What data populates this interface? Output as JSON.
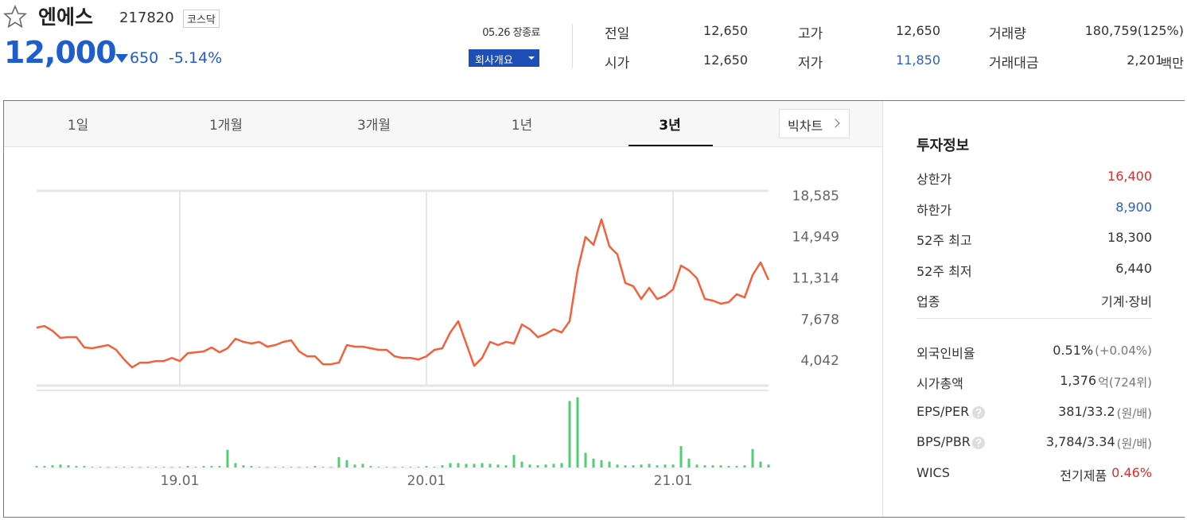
{
  "header": {
    "name": "엔에스",
    "code": "217820",
    "market": "코스닥",
    "price": "12,000",
    "change": "650",
    "change_rate": "-5.14%",
    "status": "05.26 장종료",
    "company_button": "회사개요"
  },
  "stats": [
    {
      "label": "전일",
      "value": "12,650"
    },
    {
      "label": "시가",
      "value": "12,650"
    },
    {
      "label": "고가",
      "value": "12,650"
    },
    {
      "label": "저가",
      "value": "11,850",
      "color": "#2a5fc9"
    },
    {
      "label": "거래량",
      "value": "180,759(125%)"
    },
    {
      "label": "거래대금",
      "value": "2,201",
      "unit": "백만"
    }
  ],
  "tabs": [
    "1일",
    "1개월",
    "3개월",
    "1년",
    "3년"
  ],
  "active_tab": 4,
  "big_chart": "빅차트",
  "chart_data": {
    "type": "line",
    "color": "#f5603c",
    "categories": [
      null,
      null,
      null,
      null,
      null,
      null,
      null,
      null,
      null,
      null,
      null,
      null,
      null,
      null,
      null,
      null,
      null,
      null,
      "19.01",
      null,
      null,
      null,
      null,
      null,
      null,
      null,
      null,
      null,
      null,
      null,
      null,
      null,
      null,
      null,
      null,
      null,
      null,
      null,
      null,
      null,
      null,
      null,
      null,
      null,
      null,
      null,
      null,
      null,
      null,
      "20.01",
      null,
      null,
      null,
      null,
      null,
      null,
      null,
      null,
      null,
      null,
      null,
      null,
      null,
      null,
      null,
      null,
      null,
      null,
      null,
      null,
      null,
      null,
      null,
      null,
      null,
      null,
      null,
      null,
      null,
      null,
      "21.01",
      null,
      null,
      null,
      null,
      null,
      null,
      null,
      null,
      null,
      null,
      null,
      null
    ],
    "values": [
      6920,
      7060,
      6640,
      6010,
      6080,
      6080,
      5170,
      5100,
      5240,
      5380,
      4960,
      4110,
      3410,
      3830,
      3830,
      3970,
      3970,
      4250,
      3970,
      4670,
      4740,
      4820,
      5170,
      4740,
      5100,
      5940,
      5660,
      5520,
      5660,
      5240,
      5380,
      5660,
      5800,
      4820,
      4390,
      4390,
      3690,
      3690,
      3830,
      5380,
      5240,
      5240,
      5100,
      4960,
      4960,
      4390,
      4250,
      4250,
      4110,
      4390,
      4960,
      5100,
      6500,
      7490,
      5520,
      3550,
      4250,
      5660,
      5380,
      5660,
      5520,
      7200,
      6780,
      6080,
      6360,
      6780,
      6500,
      7490,
      11980,
      14930,
      14230,
      16480,
      14090,
      13390,
      10860,
      10580,
      9450,
      10440,
      9450,
      9730,
      10300,
      12400,
      11980,
      11280,
      9450,
      9310,
      9030,
      9170,
      9870,
      9590,
      11560,
      12680,
      11140
    ],
    "ylim": [
      1800,
      19000
    ],
    "yticks": [
      {
        "value": 18585,
        "label": "18,585"
      },
      {
        "value": 14949,
        "label": "14,949"
      },
      {
        "value": 11314,
        "label": "11,314"
      },
      {
        "value": 7678,
        "label": "7,678"
      },
      {
        "value": 4042,
        "label": "4,042"
      }
    ],
    "grid": true,
    "volume": {
      "color": "#4fcf74",
      "ylim": [
        0,
        100
      ],
      "values": [
        2,
        2,
        3,
        4,
        3,
        2,
        2,
        1,
        1,
        1,
        1,
        1,
        1,
        1,
        1,
        1,
        1,
        1,
        1,
        2,
        1,
        2,
        2,
        2,
        24,
        6,
        3,
        2,
        1,
        1,
        1,
        1,
        1,
        1,
        1,
        2,
        1,
        1,
        14,
        10,
        4,
        5,
        2,
        1,
        1,
        1,
        1,
        1,
        1,
        2,
        1,
        3,
        6,
        6,
        5,
        5,
        6,
        5,
        4,
        3,
        17,
        8,
        4,
        3,
        4,
        5,
        6,
        90,
        95,
        20,
        12,
        10,
        8,
        4,
        3,
        3,
        4,
        5,
        3,
        4,
        4,
        29,
        12,
        4,
        3,
        3,
        3,
        2,
        2,
        3,
        25,
        8,
        4
      ]
    }
  },
  "invest_info": {
    "title": "투자정보",
    "groups": [
      [
        {
          "label": "상한가",
          "value": "16,400",
          "color": "#e02a2a"
        },
        {
          "label": "하한가",
          "value": "8,900",
          "color": "#2a5fc9"
        },
        {
          "label": "52주 최고",
          "value": "18,300"
        },
        {
          "label": "52주 최저",
          "value": "6,440"
        },
        {
          "label": "업종",
          "value": "기계·장비"
        }
      ],
      [
        {
          "label": "외국인비율",
          "value": "0.51%",
          "note": "(+0.04%)"
        },
        {
          "label": "시가총액",
          "value": "1,376",
          "note": "억(724위)"
        },
        {
          "label": "EPS/PER",
          "value": "381/33.2",
          "note": "(원/배)",
          "help": true
        },
        {
          "label": "BPS/PBR",
          "value": "3,784/3.34",
          "note": "(원/배)",
          "help": true
        },
        {
          "label": "WICS",
          "value": "전기제품",
          "extra": "0.46%",
          "extra_color": "#e02a2a"
        }
      ]
    ]
  }
}
